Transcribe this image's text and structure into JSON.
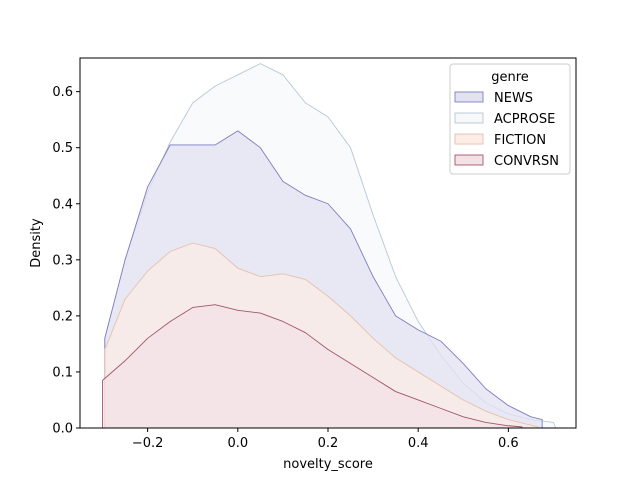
{
  "chart_data": {
    "type": "area",
    "title": "",
    "xlabel": "novelty_score",
    "ylabel": "Density",
    "xlim": [
      -0.35,
      0.75
    ],
    "ylim": [
      0.0,
      0.66
    ],
    "xticks": [
      -0.2,
      0.0,
      0.2,
      0.4,
      0.6
    ],
    "xtick_labels": [
      "−0.2",
      "0.0",
      "0.2",
      "0.4",
      "0.6"
    ],
    "yticks": [
      0.0,
      0.1,
      0.2,
      0.3,
      0.4,
      0.5,
      0.6
    ],
    "ytick_labels": [
      "0.0",
      "0.1",
      "0.2",
      "0.3",
      "0.4",
      "0.5",
      "0.6"
    ],
    "grid": false,
    "legend": {
      "title": "genre",
      "placement": "top-right"
    },
    "series": [
      {
        "name": "ACPROSE",
        "fill": "#f6f8fa",
        "stroke": "#b6c8d6",
        "points": [
          [
            -0.295,
            0.0
          ],
          [
            -0.295,
            0.16
          ],
          [
            -0.25,
            0.3
          ],
          [
            -0.2,
            0.42
          ],
          [
            -0.15,
            0.51
          ],
          [
            -0.1,
            0.58
          ],
          [
            -0.05,
            0.61
          ],
          [
            0.0,
            0.63
          ],
          [
            0.05,
            0.65
          ],
          [
            0.1,
            0.63
          ],
          [
            0.15,
            0.58
          ],
          [
            0.2,
            0.555
          ],
          [
            0.25,
            0.5
          ],
          [
            0.3,
            0.38
          ],
          [
            0.35,
            0.27
          ],
          [
            0.4,
            0.19
          ],
          [
            0.45,
            0.13
          ],
          [
            0.5,
            0.08
          ],
          [
            0.55,
            0.045
          ],
          [
            0.6,
            0.025
          ],
          [
            0.65,
            0.015
          ],
          [
            0.7,
            0.01
          ],
          [
            0.705,
            0.0
          ]
        ]
      },
      {
        "name": "NEWS",
        "fill": "#e2e2f1",
        "stroke": "#7d7dc2",
        "points": [
          [
            -0.295,
            0.0
          ],
          [
            -0.295,
            0.16
          ],
          [
            -0.25,
            0.3
          ],
          [
            -0.2,
            0.43
          ],
          [
            -0.15,
            0.505
          ],
          [
            -0.1,
            0.505
          ],
          [
            -0.05,
            0.505
          ],
          [
            0.0,
            0.53
          ],
          [
            0.05,
            0.5
          ],
          [
            0.1,
            0.44
          ],
          [
            0.15,
            0.415
          ],
          [
            0.2,
            0.4
          ],
          [
            0.25,
            0.355
          ],
          [
            0.3,
            0.27
          ],
          [
            0.35,
            0.2
          ],
          [
            0.4,
            0.175
          ],
          [
            0.45,
            0.155
          ],
          [
            0.5,
            0.115
          ],
          [
            0.55,
            0.07
          ],
          [
            0.6,
            0.04
          ],
          [
            0.65,
            0.02
          ],
          [
            0.675,
            0.015
          ],
          [
            0.675,
            0.0
          ]
        ]
      },
      {
        "name": "FICTION",
        "fill": "#fbece6",
        "stroke": "#e8bfae",
        "points": [
          [
            -0.295,
            0.0
          ],
          [
            -0.295,
            0.14
          ],
          [
            -0.25,
            0.23
          ],
          [
            -0.2,
            0.28
          ],
          [
            -0.15,
            0.315
          ],
          [
            -0.1,
            0.33
          ],
          [
            -0.05,
            0.32
          ],
          [
            0.0,
            0.285
          ],
          [
            0.05,
            0.27
          ],
          [
            0.1,
            0.275
          ],
          [
            0.15,
            0.265
          ],
          [
            0.2,
            0.235
          ],
          [
            0.25,
            0.2
          ],
          [
            0.3,
            0.16
          ],
          [
            0.35,
            0.125
          ],
          [
            0.4,
            0.1
          ],
          [
            0.45,
            0.075
          ],
          [
            0.5,
            0.05
          ],
          [
            0.55,
            0.03
          ],
          [
            0.6,
            0.015
          ],
          [
            0.65,
            0.005
          ],
          [
            0.665,
            0.002
          ],
          [
            0.665,
            0.0
          ]
        ]
      },
      {
        "name": "CONVRSN",
        "fill": "#f3e2e5",
        "stroke": "#a0576b",
        "points": [
          [
            -0.3,
            0.0
          ],
          [
            -0.3,
            0.085
          ],
          [
            -0.25,
            0.12
          ],
          [
            -0.2,
            0.16
          ],
          [
            -0.15,
            0.19
          ],
          [
            -0.1,
            0.215
          ],
          [
            -0.05,
            0.22
          ],
          [
            0.0,
            0.21
          ],
          [
            0.05,
            0.205
          ],
          [
            0.1,
            0.19
          ],
          [
            0.15,
            0.17
          ],
          [
            0.2,
            0.14
          ],
          [
            0.25,
            0.115
          ],
          [
            0.3,
            0.09
          ],
          [
            0.35,
            0.065
          ],
          [
            0.4,
            0.05
          ],
          [
            0.45,
            0.035
          ],
          [
            0.5,
            0.02
          ],
          [
            0.55,
            0.01
          ],
          [
            0.6,
            0.004
          ],
          [
            0.63,
            0.002
          ],
          [
            0.63,
            0.0
          ]
        ]
      }
    ],
    "legend_order": [
      "NEWS",
      "ACPROSE",
      "FICTION",
      "CONVRSN"
    ]
  }
}
